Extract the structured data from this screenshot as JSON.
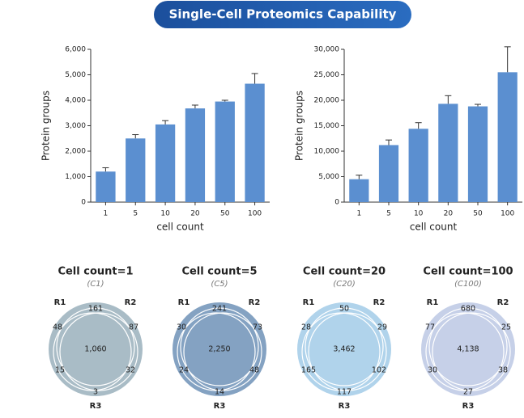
{
  "title": "Single-Cell Proteomics Capability",
  "chart_data": [
    {
      "type": "bar",
      "xlabel": "cell count",
      "ylabel": "Protein groups",
      "color": "#5b8fd0",
      "categories": [
        "1",
        "5",
        "10",
        "20",
        "50",
        "100"
      ],
      "values": [
        1200,
        2500,
        3050,
        3680,
        3950,
        4650
      ],
      "errors": [
        150,
        150,
        150,
        130,
        50,
        400
      ],
      "ylim": [
        0,
        6000
      ],
      "yticks": [
        0,
        {
          "value": 1000,
          "label": "1,000"
        },
        {
          "value": 2000,
          "label": "2,000"
        },
        {
          "value": 3000,
          "label": "3,000"
        },
        {
          "value": 4000,
          "label": "4,000"
        },
        {
          "value": 5000,
          "label": "5,000"
        },
        {
          "value": 6000,
          "label": "6,000"
        }
      ]
    },
    {
      "type": "bar",
      "xlabel": "cell count",
      "ylabel": "Protein groups",
      "color": "#5b8fd0",
      "categories": [
        "1",
        "5",
        "10",
        "20",
        "50",
        "100"
      ],
      "values": [
        4500,
        11200,
        14400,
        19300,
        18800,
        25500
      ],
      "errors": [
        800,
        1000,
        1200,
        1600,
        400,
        5000
      ],
      "ylim": [
        0,
        30000
      ],
      "yticks": [
        0,
        {
          "value": 5000,
          "label": "5,000"
        },
        {
          "value": 10000,
          "label": "10,000"
        },
        {
          "value": 15000,
          "label": "15,000"
        },
        {
          "value": 20000,
          "label": "20,000"
        },
        {
          "value": 25000,
          "label": "25,000"
        },
        {
          "value": 30000,
          "label": "30,000"
        }
      ]
    }
  ],
  "venns": [
    {
      "title": "Cell count=1",
      "subtitle": "(C1)",
      "color": "#a9bcc6",
      "sets": [
        "R1",
        "R2",
        "R3"
      ],
      "regions": {
        "top": "161",
        "left": "48",
        "right": "87",
        "center": "1,060",
        "bottom_left": "15",
        "bottom_right": "32",
        "bottom": "3"
      }
    },
    {
      "title": "Cell count=5",
      "subtitle": "(C5)",
      "color": "#84a2c2",
      "sets": [
        "R1",
        "R2",
        "R3"
      ],
      "regions": {
        "top": "241",
        "left": "30",
        "right": "73",
        "center": "2,250",
        "bottom_left": "24",
        "bottom_right": "48",
        "bottom": "14"
      }
    },
    {
      "title": "Cell count=20",
      "subtitle": "(C20)",
      "color": "#b0d3eb",
      "sets": [
        "R1",
        "R2",
        "R3"
      ],
      "regions": {
        "top": "50",
        "left": "28",
        "right": "29",
        "center": "3,462",
        "bottom_left": "165",
        "bottom_right": "102",
        "bottom": "117"
      }
    },
    {
      "title": "Cell count=100",
      "subtitle": "(C100)",
      "color": "#c6d0e8",
      "sets": [
        "R1",
        "R2",
        "R3"
      ],
      "regions": {
        "top": "680",
        "left": "77",
        "right": "25",
        "center": "4,138",
        "bottom_left": "30",
        "bottom_right": "38",
        "bottom": "27"
      }
    }
  ]
}
